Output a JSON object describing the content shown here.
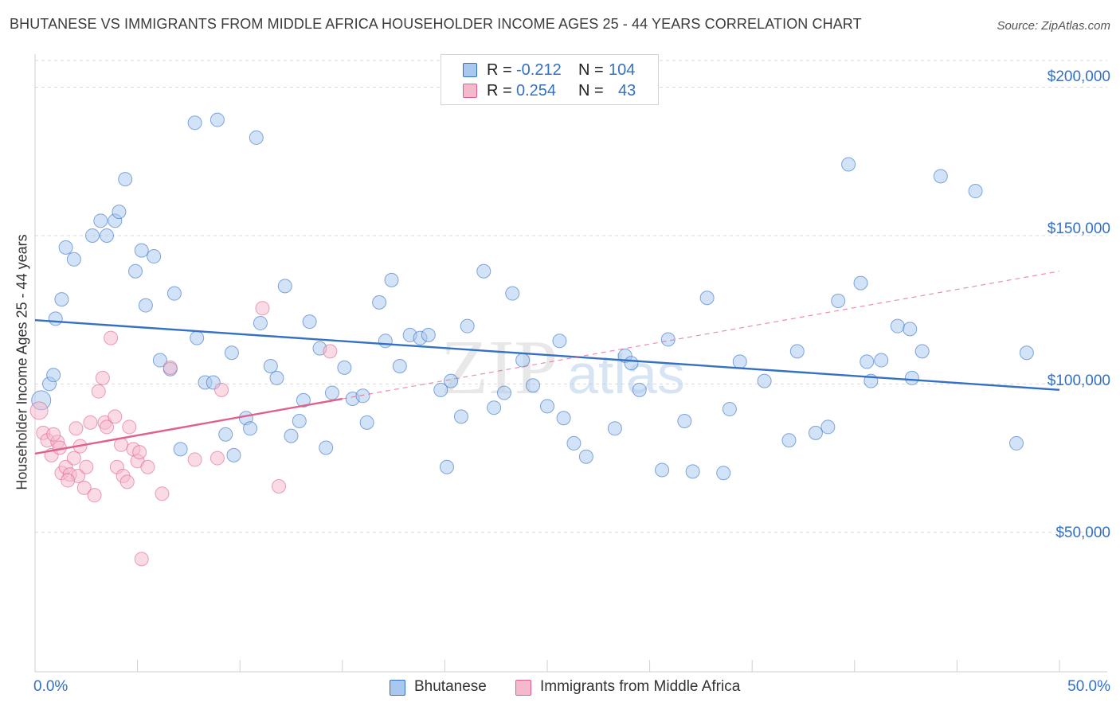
{
  "title": "BHUTANESE VS IMMIGRANTS FROM MIDDLE AFRICA HOUSEHOLDER INCOME AGES 25 - 44 YEARS CORRELATION CHART",
  "source": "Source: ZipAtlas.com",
  "watermark": "ZIPatlas",
  "stats": [
    {
      "r_label": "R =",
      "r": "-0.212",
      "n_label": "N =",
      "n": "104",
      "color": "#a8c8f0"
    },
    {
      "r_label": "R =",
      "r": "0.254",
      "n_label": "N =",
      "n": "43",
      "color": "#f5b8cc"
    }
  ],
  "legend": [
    {
      "label": "Bhutanese",
      "color": "#a8c8f0"
    },
    {
      "label": "Immigrants from Middle Africa",
      "color": "#f5b8cc"
    }
  ],
  "chart_data": {
    "type": "scatter",
    "title": "BHUTANESE VS IMMIGRANTS FROM MIDDLE AFRICA HOUSEHOLDER INCOME AGES 25 - 44 YEARS CORRELATION CHART",
    "xlabel": "",
    "ylabel": "Householder Income Ages 25 - 44 years",
    "xlim": [
      0,
      50
    ],
    "ylim": [
      3000,
      209000
    ],
    "x_tick_labels": [
      "0.0%",
      "50.0%"
    ],
    "y_ticks": [
      50000,
      100000,
      150000,
      200000
    ],
    "y_tick_labels": [
      "$50,000",
      "$100,000",
      "$150,000",
      "$200,000"
    ],
    "grid": "horizontal dashed",
    "legend_position": "bottom",
    "series": [
      {
        "name": "Bhutanese",
        "color": "#3470c4",
        "fill": "#a8c8f0",
        "trend": {
          "x": [
            0,
            50
          ],
          "y": [
            121500,
            98000
          ],
          "style": "solid"
        },
        "points": [
          [
            0.3,
            94500
          ],
          [
            0.7,
            100000
          ],
          [
            0.9,
            103000
          ],
          [
            1.0,
            122000
          ],
          [
            1.3,
            128500
          ],
          [
            1.5,
            146000
          ],
          [
            1.9,
            142000
          ],
          [
            2.8,
            150000
          ],
          [
            3.2,
            155000
          ],
          [
            3.5,
            150000
          ],
          [
            3.9,
            155000
          ],
          [
            4.1,
            158000
          ],
          [
            4.4,
            169000
          ],
          [
            4.9,
            138000
          ],
          [
            5.2,
            145000
          ],
          [
            5.4,
            126500
          ],
          [
            5.8,
            143000
          ],
          [
            6.1,
            108000
          ],
          [
            6.6,
            105000
          ],
          [
            6.8,
            130500
          ],
          [
            7.1,
            78000
          ],
          [
            7.8,
            188000
          ],
          [
            7.9,
            115500
          ],
          [
            8.3,
            100500
          ],
          [
            8.7,
            100500
          ],
          [
            8.9,
            189000
          ],
          [
            9.3,
            83000
          ],
          [
            9.6,
            110500
          ],
          [
            9.7,
            76000
          ],
          [
            10.3,
            88500
          ],
          [
            10.5,
            85000
          ],
          [
            10.8,
            183000
          ],
          [
            11.0,
            120500
          ],
          [
            11.5,
            106000
          ],
          [
            11.8,
            102000
          ],
          [
            12.2,
            133000
          ],
          [
            12.5,
            82500
          ],
          [
            12.9,
            87500
          ],
          [
            13.1,
            94500
          ],
          [
            13.4,
            121000
          ],
          [
            13.9,
            112000
          ],
          [
            14.2,
            78500
          ],
          [
            14.5,
            97000
          ],
          [
            15.1,
            105500
          ],
          [
            15.5,
            95000
          ],
          [
            16.0,
            96000
          ],
          [
            16.2,
            87000
          ],
          [
            16.8,
            127500
          ],
          [
            17.1,
            114500
          ],
          [
            17.4,
            135000
          ],
          [
            17.8,
            106000
          ],
          [
            18.3,
            116500
          ],
          [
            18.8,
            115500
          ],
          [
            19.2,
            116500
          ],
          [
            19.8,
            98000
          ],
          [
            20.1,
            72000
          ],
          [
            20.3,
            101000
          ],
          [
            20.8,
            89000
          ],
          [
            21.1,
            119500
          ],
          [
            21.9,
            138000
          ],
          [
            22.4,
            92000
          ],
          [
            22.9,
            97000
          ],
          [
            23.3,
            130500
          ],
          [
            23.8,
            108000
          ],
          [
            24.3,
            99500
          ],
          [
            25.0,
            92500
          ],
          [
            25.6,
            114500
          ],
          [
            25.8,
            88500
          ],
          [
            26.3,
            80000
          ],
          [
            26.9,
            75500
          ],
          [
            28.3,
            85000
          ],
          [
            28.8,
            109500
          ],
          [
            29.1,
            107000
          ],
          [
            29.5,
            98000
          ],
          [
            30.6,
            71000
          ],
          [
            30.9,
            115000
          ],
          [
            31.7,
            87500
          ],
          [
            32.1,
            70500
          ],
          [
            32.8,
            129000
          ],
          [
            33.6,
            70000
          ],
          [
            33.9,
            91500
          ],
          [
            34.4,
            107500
          ],
          [
            35.6,
            101000
          ],
          [
            36.8,
            81000
          ],
          [
            37.2,
            111000
          ],
          [
            38.1,
            83500
          ],
          [
            38.7,
            85500
          ],
          [
            39.2,
            128000
          ],
          [
            39.7,
            174000
          ],
          [
            40.3,
            134000
          ],
          [
            40.6,
            107500
          ],
          [
            40.8,
            101000
          ],
          [
            41.3,
            108000
          ],
          [
            42.1,
            119500
          ],
          [
            42.8,
            102000
          ],
          [
            42.7,
            118500
          ],
          [
            43.3,
            111000
          ],
          [
            44.2,
            170000
          ],
          [
            45.9,
            165000
          ],
          [
            47.9,
            80000
          ],
          [
            48.4,
            110500
          ]
        ]
      },
      {
        "name": "Immigrants from Middle Africa",
        "color": "#e0608a",
        "fill": "#f5b8cc",
        "trend": {
          "x": [
            0,
            15
          ],
          "y": [
            76500,
            95000
          ],
          "style": "solid",
          "extended_to": [
            50,
            138000
          ]
        },
        "points": [
          [
            0.2,
            91000
          ],
          [
            0.4,
            83500
          ],
          [
            0.6,
            81000
          ],
          [
            0.8,
            76000
          ],
          [
            1.1,
            80500
          ],
          [
            1.2,
            78500
          ],
          [
            1.3,
            70000
          ],
          [
            1.5,
            72000
          ],
          [
            1.7,
            69500
          ],
          [
            1.9,
            75000
          ],
          [
            2.0,
            85000
          ],
          [
            2.1,
            69000
          ],
          [
            2.2,
            79000
          ],
          [
            2.4,
            65000
          ],
          [
            2.5,
            72000
          ],
          [
            2.7,
            87000
          ],
          [
            2.9,
            62500
          ],
          [
            3.1,
            97500
          ],
          [
            3.3,
            102000
          ],
          [
            3.4,
            87000
          ],
          [
            3.5,
            85500
          ],
          [
            3.7,
            115500
          ],
          [
            3.9,
            89000
          ],
          [
            4.0,
            72000
          ],
          [
            4.2,
            79500
          ],
          [
            4.3,
            69000
          ],
          [
            4.5,
            67000
          ],
          [
            4.6,
            85500
          ],
          [
            4.8,
            78000
          ],
          [
            5.0,
            74000
          ],
          [
            5.1,
            77000
          ],
          [
            5.2,
            41000
          ],
          [
            5.5,
            72000
          ],
          [
            6.2,
            63000
          ],
          [
            6.6,
            105500
          ],
          [
            7.8,
            74500
          ],
          [
            8.9,
            75000
          ],
          [
            9.1,
            98000
          ],
          [
            11.1,
            125500
          ],
          [
            11.9,
            65500
          ],
          [
            14.4,
            111000
          ],
          [
            1.6,
            67500
          ],
          [
            0.9,
            83000
          ]
        ]
      }
    ]
  }
}
